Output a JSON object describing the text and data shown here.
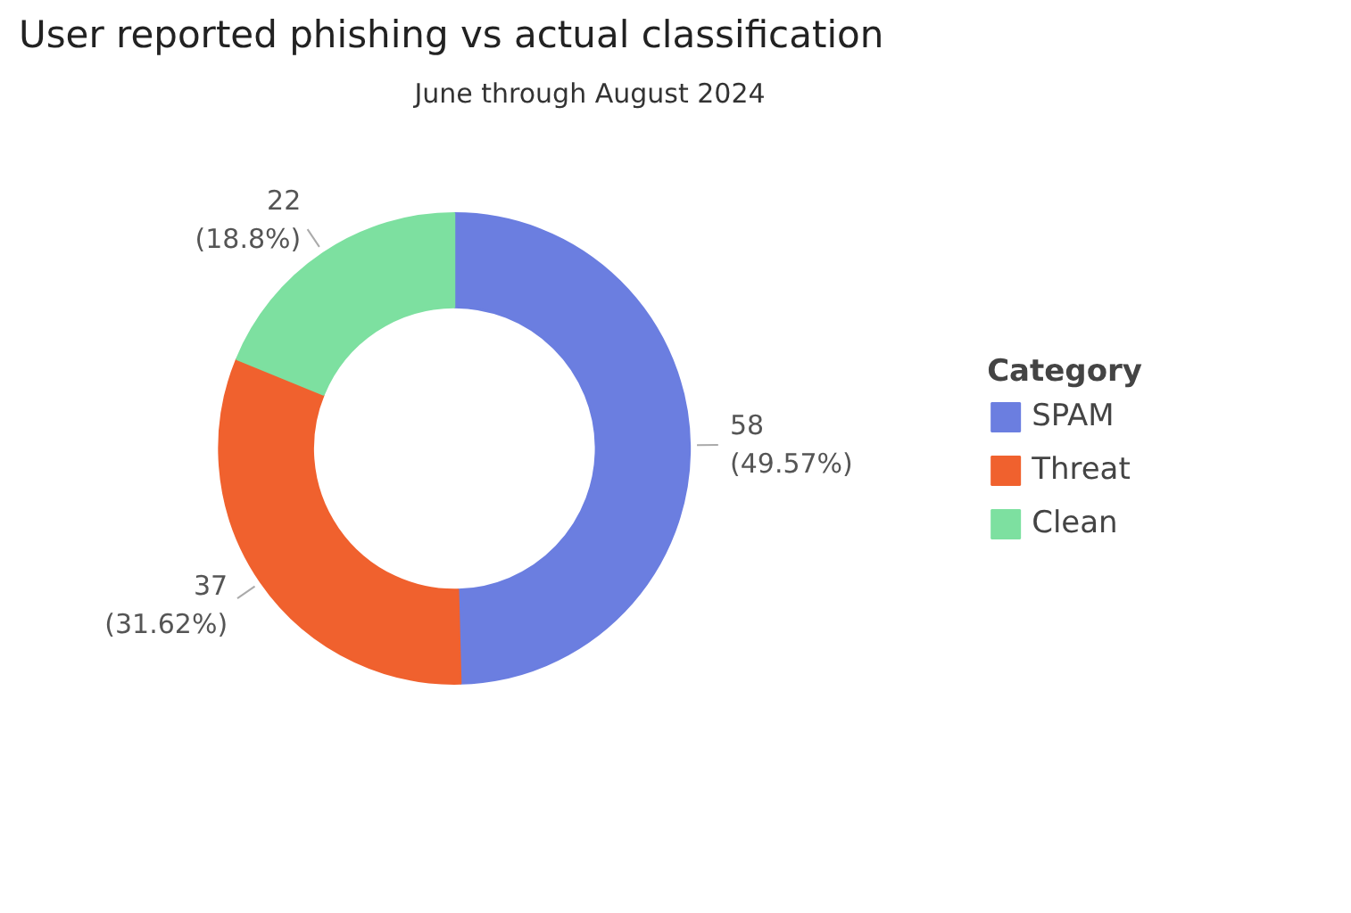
{
  "chart_data": {
    "type": "donut",
    "title": "User reported phishing vs actual classification",
    "subtitle": "June through August 2024",
    "categories": [
      "SPAM",
      "Threat",
      "Clean"
    ],
    "values": [
      58,
      37,
      22
    ],
    "colors": [
      "#6b7ee0",
      "#f0612e",
      "#7de0a0"
    ],
    "value_labels": [
      "58 (49.57%)",
      "37 (31.62%)",
      "22 (18.8%)"
    ],
    "legend_title": "Category",
    "legend": "right"
  }
}
